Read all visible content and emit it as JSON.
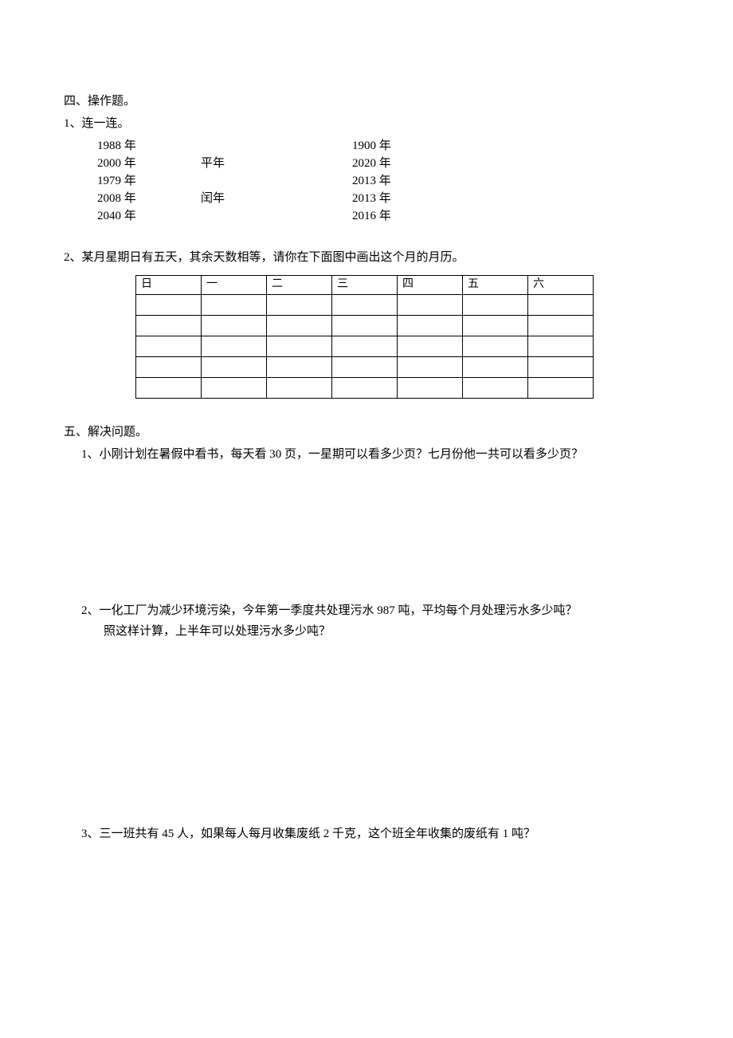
{
  "section4": {
    "heading": "四、操作题。",
    "q1": {
      "label": "1、连一连。",
      "rows": [
        {
          "left": "1988 年",
          "type": "",
          "right": "1900 年"
        },
        {
          "left": "2000 年",
          "type": "平年",
          "right": "2020 年"
        },
        {
          "left": "1979 年",
          "type": "",
          "right": "2013 年"
        },
        {
          "left": "2008 年",
          "type": "闰年",
          "right": "2013 年"
        },
        {
          "left": "2040 年",
          "type": "",
          "right": "2016 年"
        }
      ]
    },
    "q2": {
      "label": "2、某月星期日有五天，其余天数相等，请你在下面图中画出这个月的月历。",
      "headers": [
        "日",
        "一",
        "二",
        "三",
        "四",
        "五",
        "六"
      ],
      "row_count": 5
    }
  },
  "section5": {
    "heading": "五、解决问题。",
    "q1": {
      "text": "1、小刚计划在暑假中看书，每天看 30 页，一星期可以看多少页？七月份他一共可以看多少页？"
    },
    "q2": {
      "line1": "2、一化工厂为减少环境污染，今年第一季度共处理污水 987 吨，平均每个月处理污水多少吨？",
      "line2": "照这样计算，上半年可以处理污水多少吨？"
    },
    "q3": {
      "text": "3、三一班共有 45 人，如果每人每月收集废纸 2 千克，这个班全年收集的废纸有 1 吨？"
    }
  }
}
